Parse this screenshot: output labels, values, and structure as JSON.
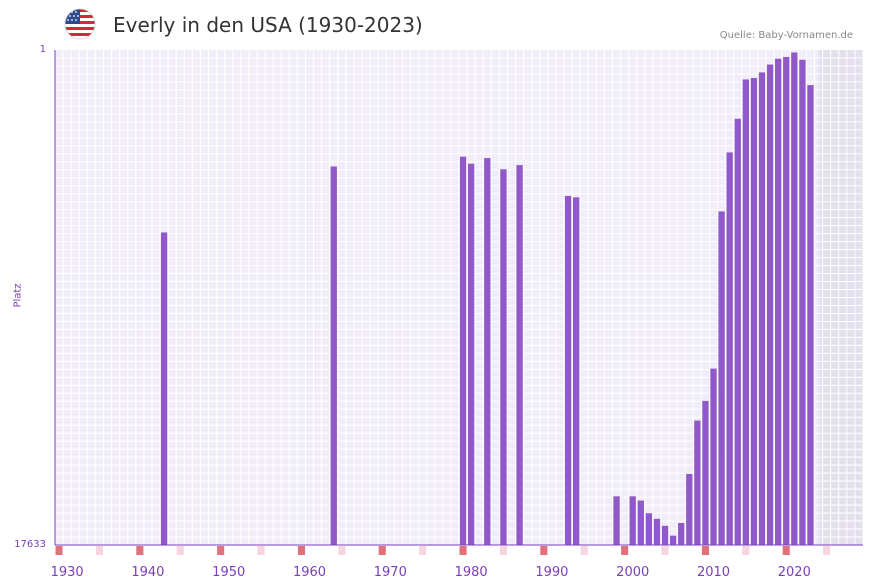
{
  "header": {
    "title": "Everly in den USA (1930-2023)",
    "source": "Quelle: Baby-Vornamen.de",
    "flag_icon": "us-flag-icon"
  },
  "chart_data": {
    "type": "bar",
    "title": "Everly in den USA (1930-2023)",
    "xlabel": "",
    "ylabel": "Platz",
    "y_axis_inverted": true,
    "ylim": [
      1,
      17633
    ],
    "y_tick_labels": [
      "1",
      "17633"
    ],
    "xlim": [
      1929,
      2029
    ],
    "x_tick_labels": [
      "1930",
      "1940",
      "1950",
      "1960",
      "1970",
      "1980",
      "1990",
      "2000",
      "2010",
      "2020"
    ],
    "x_ticks": [
      1930,
      1940,
      1950,
      1960,
      1970,
      1980,
      1990,
      2000,
      2010,
      2020
    ],
    "projection_start_year": 2023,
    "series": [
      {
        "name": "Everly",
        "color": "#9058c8",
        "years": [
          1942,
          1963,
          1979,
          1980,
          1982,
          1984,
          1986,
          1992,
          1993,
          1998,
          2000,
          2001,
          2002,
          2003,
          2004,
          2005,
          2006,
          2007,
          2008,
          2009,
          2010,
          2011,
          2012,
          2013,
          2014,
          2015,
          2016,
          2017,
          2018,
          2019,
          2020,
          2021,
          2022
        ],
        "ranks": [
          6500,
          4150,
          3800,
          4050,
          3850,
          4250,
          4100,
          5200,
          5250,
          15900,
          15900,
          16050,
          16500,
          16700,
          16950,
          17300,
          16850,
          15100,
          13200,
          12500,
          11350,
          5750,
          3650,
          2450,
          1050,
          1000,
          800,
          520,
          310,
          250,
          90,
          350,
          1250
        ]
      }
    ]
  },
  "colors": {
    "bar": "#9058c8",
    "axis": "#7a3fb8",
    "plot_bg": "#f1ecf9",
    "grid": "#ffffff",
    "projection_bg": "#e4e0ee",
    "decade_marker": "#e0707a",
    "half_decade_marker": "#f6d6dc"
  }
}
